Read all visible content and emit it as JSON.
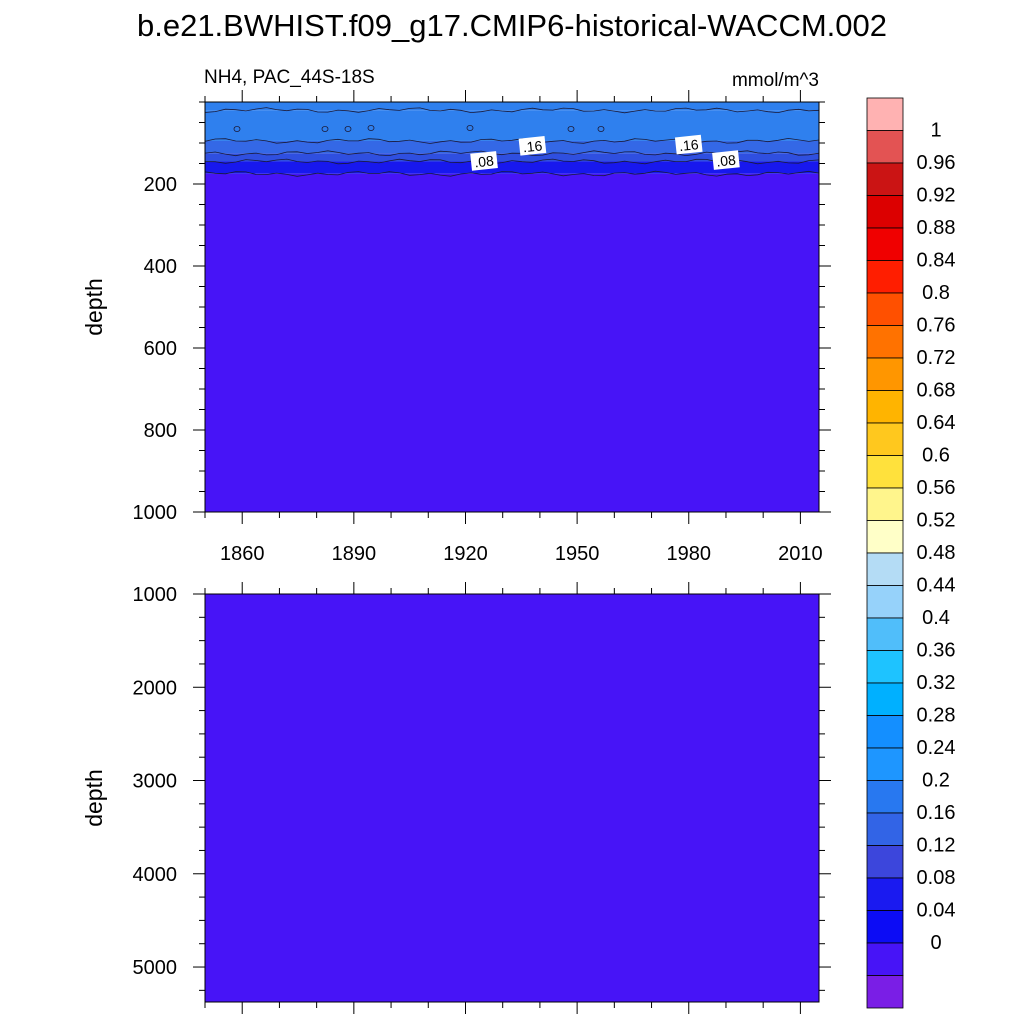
{
  "title": "b.e21.BWHIST.f09_g17.CMIP6-historical-WACCM.002",
  "subtitle_left": "NH4, PAC_44S-18S",
  "subtitle_right": "mmol/m^3",
  "colors": {
    "fill_deep": "#4714f7",
    "fill_shallow": "#2f80ee",
    "fill_mid": "#3465e6",
    "fill_low": "#1a24f0",
    "fill_vlow": "#0d0df2"
  },
  "chart_data": [
    {
      "type": "heatmap",
      "name": "upper-panel",
      "ylabel": "depth",
      "y_ticks": [
        "200",
        "400",
        "600",
        "800",
        "1000"
      ],
      "y_tick_values": [
        200,
        400,
        600,
        800,
        1000
      ],
      "ylim": [
        0,
        1000
      ],
      "x_ticks": [
        "1860",
        "1890",
        "1920",
        "1950",
        "1980",
        "2010"
      ],
      "x_tick_values": [
        1860,
        1890,
        1920,
        1950,
        1980,
        2010
      ],
      "xlim": [
        1850,
        2015
      ],
      "contour_labels": [
        {
          "text": ".08",
          "year": 1925,
          "depth": 145
        },
        {
          "text": ".16",
          "year": 1938,
          "depth": 108
        },
        {
          "text": ".16",
          "year": 1980,
          "depth": 105
        },
        {
          "text": ".08",
          "year": 1990,
          "depth": 143
        }
      ],
      "layers": [
        {
          "value_range": "0.20-0.24",
          "depth_range": [
            0,
            20
          ]
        },
        {
          "value_range": "0.16-0.20",
          "depth_range": [
            20,
            95
          ]
        },
        {
          "value_range": "0.12-0.16",
          "depth_range": [
            95,
            125
          ]
        },
        {
          "value_range": "0.08-0.12",
          "depth_range": [
            125,
            145
          ]
        },
        {
          "value_range": "0.04-0.08",
          "depth_range": [
            145,
            175
          ]
        },
        {
          "value_range": "0.00-0.04",
          "depth_range": [
            175,
            1000
          ]
        }
      ]
    },
    {
      "type": "heatmap",
      "name": "lower-panel",
      "ylabel": "depth",
      "y_ticks": [
        "1000",
        "2000",
        "3000",
        "4000",
        "5000"
      ],
      "y_tick_values": [
        1000,
        2000,
        3000,
        4000,
        5000
      ],
      "ylim": [
        1000,
        5375
      ],
      "xlim": [
        1850,
        2015
      ],
      "layers": [
        {
          "value_range": "0.00-0.04",
          "depth_range": [
            1000,
            5375
          ]
        }
      ]
    }
  ],
  "colorbar": {
    "labels": [
      "1",
      "0.96",
      "0.92",
      "0.88",
      "0.84",
      "0.8",
      "0.76",
      "0.72",
      "0.68",
      "0.64",
      "0.6",
      "0.56",
      "0.52",
      "0.48",
      "0.44",
      "0.4",
      "0.36",
      "0.32",
      "0.28",
      "0.24",
      "0.2",
      "0.16",
      "0.12",
      "0.08",
      "0.04",
      "0"
    ],
    "colors": [
      "#ffb2b2",
      "#e35353",
      "#cb1414",
      "#dc0000",
      "#f00000",
      "#ff1e00",
      "#ff5000",
      "#ff7200",
      "#ff9600",
      "#ffb400",
      "#ffc81e",
      "#ffe13c",
      "#fff58c",
      "#ffffc8",
      "#b4dcf5",
      "#96d2fa",
      "#50befa",
      "#1ec3ff",
      "#00b0ff",
      "#148fff",
      "#1e96ff",
      "#2878f0",
      "#3264e6",
      "#3c46dc",
      "#1a1af0",
      "#0c0cf5",
      "#4714f7",
      "#7a1ee6"
    ]
  }
}
